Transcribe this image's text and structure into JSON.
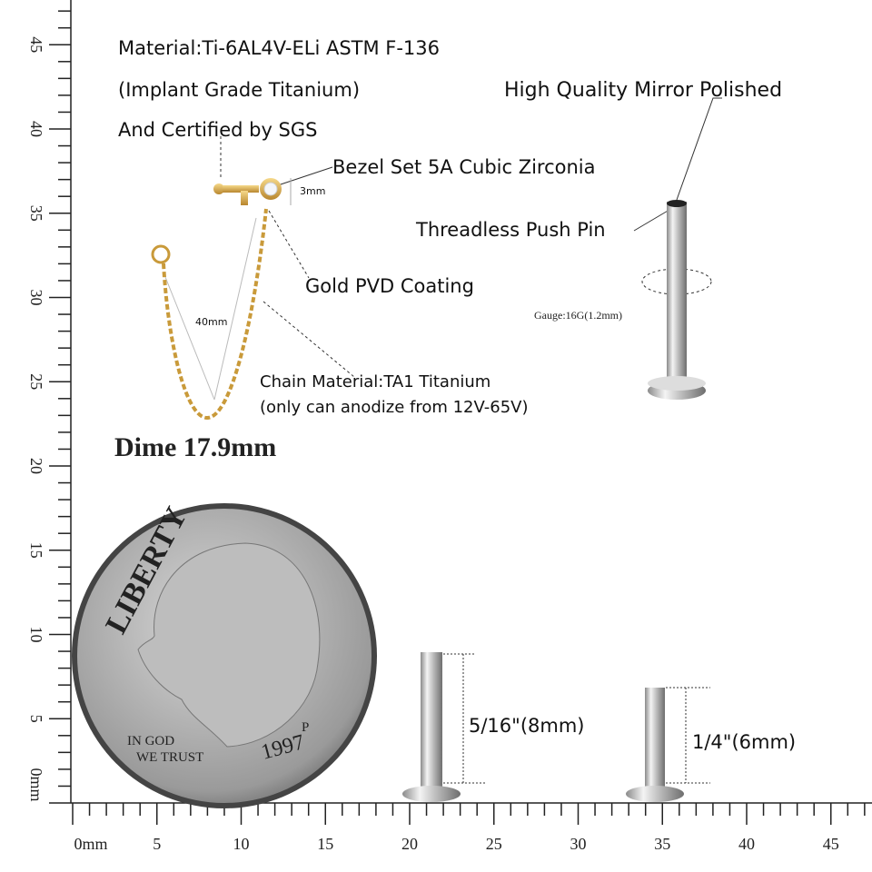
{
  "material": {
    "line1": "Material:Ti-6AL4V-ELi ASTM F-136",
    "line2": "(Implant Grade Titanium)",
    "line3": "And Certified by SGS"
  },
  "callouts": {
    "polish": "High Quality Mirror Polished",
    "bezel": "Bezel Set 5A Cubic Zirconia",
    "pin": "Threadless Push Pin",
    "coating": "Gold PVD Coating",
    "chain1": "Chain Material:TA1 Titanium",
    "chain2": "(only can anodize from 12V-65V)",
    "gauge": "Gauge:16G(1.2mm)",
    "height": "3mm",
    "length": "40mm"
  },
  "dime": {
    "label": "Dime 17.9mm",
    "liberty": "LIBERTY",
    "motto1": "IN GOD",
    "motto2": "WE TRUST",
    "year": "1997",
    "mint": "P"
  },
  "sizes": [
    "5/16\"(8mm)",
    "1/4\"(6mm)"
  ],
  "ruler": {
    "x_labels": [
      "0mm",
      "5",
      "10",
      "15",
      "20",
      "25",
      "30",
      "35",
      "40",
      "45"
    ],
    "y_labels": [
      "0mm",
      "5",
      "10",
      "15",
      "20",
      "25",
      "30",
      "35",
      "40",
      "45"
    ]
  }
}
